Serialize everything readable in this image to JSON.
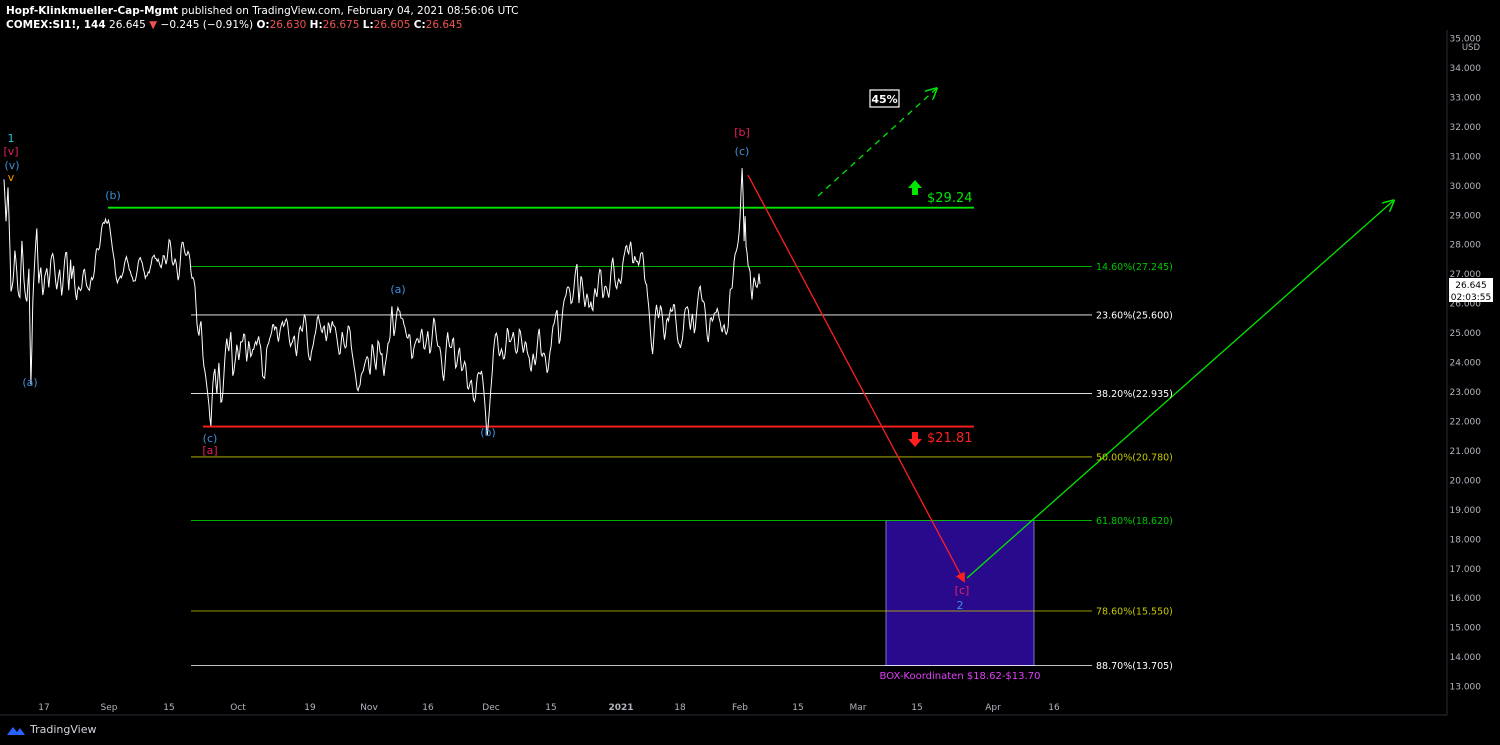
{
  "header": {
    "author": "Hopf-Klinkmueller-Cap-Mgmt",
    "published": " published on TradingView.com, February 04, 2021 08:56:06 UTC",
    "symbol": "COMEX:SI1!, 144",
    "last": "26.645",
    "change": "−0.245 (−0.91%)",
    "o_label": "O:",
    "o_val": "26.630",
    "h_label": "H:",
    "h_val": "26.675",
    "l_label": "L:",
    "l_val": "26.605",
    "c_label": "C:",
    "c_val": "26.645"
  },
  "footer": {
    "brand": "TradingView",
    "logo_icon": "tradingview-logo-icon"
  },
  "colors": {
    "background": "#000000",
    "price": "#ffffff",
    "green": "#00e600",
    "red": "#ff1f1f",
    "yellow": "#c8c800",
    "blue": "#3d8fd6",
    "pink": "#e91e63",
    "box": "#2a0a8c",
    "magenta": "#e040fb"
  },
  "chart_data": {
    "type": "line",
    "currency": "USD",
    "y_ticks": [
      "13.000",
      "14.000",
      "15.000",
      "16.000",
      "17.000",
      "18.000",
      "19.000",
      "20.000",
      "21.000",
      "22.000",
      "23.000",
      "24.000",
      "25.000",
      "26.000",
      "27.000",
      "28.000",
      "29.000",
      "30.000",
      "31.000",
      "32.000",
      "33.000",
      "34.000",
      "35.000"
    ],
    "x_ticks": [
      "17",
      "Sep",
      "15",
      "Oct",
      "19",
      "Nov",
      "16",
      "Dec",
      "15",
      "2021",
      "18",
      "Feb",
      "15",
      "Mar",
      "15",
      "Apr",
      "16"
    ],
    "ylim": [
      12.7,
      35.2
    ],
    "price_anchors": [
      [
        0,
        30.0
      ],
      [
        2,
        28.6
      ],
      [
        4,
        29.7
      ],
      [
        7,
        26.2
      ],
      [
        11,
        28.1
      ],
      [
        14,
        26.6
      ],
      [
        16,
        26.2
      ],
      [
        18,
        27.6
      ],
      [
        20,
        26.5
      ],
      [
        23,
        26.2
      ],
      [
        25,
        27.3
      ],
      [
        27,
        23.7
      ],
      [
        29,
        26.2
      ],
      [
        31,
        27.1
      ],
      [
        33,
        28.3
      ],
      [
        35,
        26.5
      ],
      [
        37,
        27.0
      ],
      [
        39,
        26.6
      ],
      [
        41,
        27.4
      ],
      [
        43,
        27.2
      ],
      [
        45,
        26.5
      ],
      [
        47,
        27.3
      ],
      [
        50,
        27.1
      ],
      [
        53,
        26.8
      ],
      [
        56,
        27.3
      ],
      [
        58,
        26.6
      ],
      [
        60,
        27.0
      ],
      [
        63,
        27.3
      ],
      [
        65,
        26.4
      ],
      [
        67,
        27.4
      ],
      [
        68,
        26.8
      ],
      [
        70,
        27.7
      ],
      [
        73,
        26.2
      ],
      [
        75,
        26.3
      ],
      [
        78,
        26.3
      ],
      [
        81,
        26.9
      ],
      [
        84,
        27.0
      ],
      [
        86,
        26.6
      ],
      [
        88,
        27.0
      ],
      [
        91,
        26.9
      ],
      [
        94,
        27.5
      ],
      [
        96,
        28.0
      ],
      [
        98,
        28.6
      ],
      [
        100,
        29.0
      ],
      [
        102,
        29.3
      ],
      [
        104,
        28.6
      ],
      [
        106,
        28.3
      ],
      [
        108,
        28.0
      ],
      [
        110,
        27.4
      ],
      [
        112,
        27.0
      ],
      [
        115,
        27.3
      ],
      [
        118,
        26.8
      ],
      [
        121,
        27.2
      ],
      [
        124,
        27.0
      ],
      [
        127,
        27.4
      ],
      [
        130,
        26.9
      ],
      [
        133,
        27.2
      ],
      [
        136,
        27.0
      ],
      [
        139,
        27.3
      ],
      [
        142,
        26.8
      ],
      [
        145,
        27.6
      ],
      [
        148,
        27.2
      ],
      [
        151,
        27.5
      ],
      [
        154,
        27.0
      ],
      [
        157,
        27.6
      ],
      [
        160,
        27.8
      ],
      [
        163,
        27.5
      ],
      [
        166,
        27.7
      ],
      [
        169,
        27.3
      ],
      [
        172,
        27.6
      ],
      [
        175,
        27.2
      ],
      [
        178,
        27.8
      ],
      [
        181,
        27.6
      ],
      [
        184,
        27.4
      ],
      [
        187,
        27.7
      ],
      [
        190,
        27.2
      ],
      [
        192,
        26.5
      ],
      [
        194,
        25.3
      ],
      [
        196,
        24.6
      ],
      [
        198,
        24.9
      ],
      [
        200,
        24.3
      ],
      [
        202,
        24.0
      ],
      [
        204,
        23.3
      ],
      [
        206,
        22.9
      ],
      [
        208,
        21.9
      ],
      [
        210,
        22.8
      ],
      [
        212,
        23.5
      ],
      [
        214,
        22.9
      ],
      [
        216,
        23.9
      ],
      [
        218,
        23.0
      ],
      [
        220,
        23.4
      ],
      [
        222,
        24.0
      ],
      [
        224,
        24.6
      ],
      [
        226,
        24.2
      ],
      [
        228,
        24.6
      ],
      [
        230,
        23.5
      ],
      [
        232,
        24.4
      ],
      [
        234,
        24.8
      ],
      [
        236,
        24.2
      ],
      [
        238,
        24.8
      ],
      [
        240,
        24.3
      ],
      [
        242,
        24.5
      ],
      [
        244,
        24.1
      ],
      [
        246,
        24.8
      ],
      [
        248,
        24.4
      ],
      [
        250,
        24.9
      ],
      [
        252,
        24.6
      ],
      [
        254,
        24.2
      ],
      [
        256,
        24.7
      ],
      [
        258,
        24.3
      ],
      [
        260,
        23.4
      ],
      [
        262,
        23.9
      ],
      [
        264,
        24.8
      ],
      [
        266,
        24.6
      ],
      [
        268,
        24.9
      ],
      [
        270,
        25.0
      ],
      [
        272,
        24.6
      ],
      [
        274,
        25.2
      ],
      [
        276,
        25.0
      ],
      [
        278,
        25.3
      ],
      [
        280,
        25.7
      ],
      [
        282,
        25.4
      ],
      [
        284,
        25.0
      ],
      [
        286,
        24.7
      ],
      [
        288,
        24.5
      ],
      [
        290,
        24.6
      ],
      [
        292,
        25.2
      ],
      [
        294,
        24.7
      ],
      [
        296,
        24.8
      ],
      [
        298,
        25.0
      ],
      [
        300,
        24.9
      ],
      [
        302,
        25.2
      ],
      [
        304,
        25.1
      ],
      [
        306,
        24.7
      ],
      [
        308,
        24.3
      ],
      [
        310,
        24.6
      ],
      [
        312,
        25.0
      ],
      [
        314,
        24.8
      ],
      [
        316,
        25.1
      ],
      [
        318,
        25.3
      ],
      [
        320,
        25.1
      ],
      [
        322,
        25.4
      ],
      [
        324,
        25.2
      ],
      [
        326,
        25.4
      ],
      [
        328,
        24.6
      ],
      [
        330,
        25.2
      ],
      [
        332,
        25.0
      ],
      [
        334,
        24.8
      ],
      [
        336,
        24.9
      ],
      [
        338,
        24.7
      ],
      [
        340,
        25.0
      ],
      [
        342,
        24.6
      ],
      [
        344,
        24.3
      ],
      [
        346,
        24.7
      ],
      [
        348,
        25.0
      ],
      [
        350,
        24.6
      ],
      [
        352,
        24.0
      ],
      [
        354,
        23.7
      ],
      [
        356,
        23.2
      ],
      [
        358,
        22.8
      ],
      [
        360,
        23.3
      ],
      [
        362,
        23.8
      ],
      [
        364,
        24.0
      ],
      [
        366,
        24.4
      ],
      [
        368,
        24.1
      ],
      [
        370,
        24.6
      ],
      [
        372,
        24.0
      ],
      [
        374,
        23.6
      ],
      [
        376,
        24.3
      ],
      [
        378,
        24.2
      ],
      [
        380,
        24.7
      ],
      [
        382,
        23.8
      ],
      [
        384,
        24.2
      ],
      [
        386,
        24.8
      ],
      [
        388,
        24.5
      ],
      [
        390,
        25.4
      ],
      [
        392,
        24.9
      ],
      [
        394,
        25.5
      ],
      [
        396,
        26.0
      ],
      [
        398,
        26.2
      ],
      [
        400,
        25.6
      ],
      [
        402,
        24.9
      ],
      [
        404,
        24.8
      ],
      [
        406,
        24.6
      ],
      [
        408,
        24.7
      ],
      [
        410,
        24.5
      ],
      [
        412,
        24.9
      ],
      [
        414,
        24.7
      ],
      [
        416,
        24.8
      ],
      [
        418,
        24.5
      ],
      [
        420,
        24.6
      ],
      [
        422,
        24.4
      ],
      [
        424,
        24.9
      ],
      [
        426,
        25.2
      ],
      [
        428,
        24.6
      ],
      [
        430,
        24.9
      ],
      [
        432,
        25.1
      ],
      [
        434,
        24.7
      ],
      [
        436,
        24.5
      ],
      [
        438,
        24.4
      ],
      [
        440,
        24.2
      ],
      [
        442,
        23.9
      ],
      [
        444,
        24.3
      ],
      [
        446,
        24.8
      ],
      [
        448,
        24.4
      ],
      [
        450,
        24.1
      ],
      [
        452,
        24.6
      ],
      [
        454,
        24.2
      ],
      [
        456,
        24.4
      ],
      [
        458,
        24.6
      ],
      [
        460,
        23.9
      ],
      [
        462,
        23.6
      ],
      [
        464,
        23.4
      ],
      [
        466,
        23.1
      ],
      [
        468,
        23.3
      ],
      [
        470,
        23.5
      ],
      [
        472,
        23.2
      ],
      [
        474,
        23.0
      ],
      [
        476,
        23.2
      ],
      [
        478,
        23.4
      ],
      [
        480,
        23.5
      ],
      [
        482,
        22.9
      ],
      [
        484,
        22.6
      ],
      [
        486,
        22.0
      ],
      [
        488,
        22.4
      ],
      [
        490,
        23.3
      ],
      [
        492,
        24.2
      ],
      [
        494,
        24.4
      ],
      [
        496,
        24.7
      ],
      [
        498,
        24.5
      ],
      [
        500,
        24.6
      ],
      [
        502,
        24.4
      ],
      [
        504,
        24.6
      ],
      [
        506,
        24.8
      ],
      [
        508,
        24.3
      ],
      [
        510,
        24.7
      ],
      [
        512,
        24.9
      ],
      [
        514,
        24.6
      ],
      [
        516,
        24.9
      ],
      [
        518,
        25.2
      ],
      [
        520,
        24.6
      ],
      [
        522,
        24.2
      ],
      [
        524,
        24.3
      ],
      [
        526,
        24.1
      ],
      [
        528,
        24.5
      ],
      [
        530,
        24.0
      ],
      [
        532,
        24.4
      ],
      [
        534,
        24.1
      ],
      [
        536,
        24.3
      ],
      [
        538,
        24.6
      ],
      [
        540,
        24.2
      ],
      [
        542,
        24.4
      ],
      [
        544,
        24.3
      ],
      [
        546,
        24.1
      ],
      [
        548,
        24.3
      ],
      [
        550,
        24.2
      ],
      [
        552,
        25.0
      ],
      [
        554,
        25.3
      ],
      [
        556,
        25.5
      ],
      [
        558,
        24.9
      ],
      [
        560,
        25.6
      ],
      [
        562,
        25.9
      ],
      [
        564,
        26.2
      ],
      [
        566,
        26.4
      ],
      [
        568,
        26.0
      ],
      [
        570,
        25.8
      ],
      [
        572,
        26.5
      ],
      [
        574,
        27.1
      ],
      [
        576,
        27.6
      ],
      [
        578,
        26.3
      ],
      [
        580,
        26.6
      ],
      [
        582,
        26.1
      ],
      [
        584,
        25.8
      ],
      [
        586,
        26.2
      ],
      [
        588,
        26.0
      ],
      [
        590,
        26.6
      ],
      [
        592,
        25.9
      ],
      [
        594,
        26.3
      ],
      [
        596,
        26.1
      ],
      [
        598,
        26.6
      ],
      [
        600,
        26.8
      ],
      [
        602,
        26.5
      ],
      [
        604,
        26.9
      ],
      [
        606,
        26.6
      ],
      [
        608,
        26.4
      ],
      [
        610,
        26.8
      ],
      [
        612,
        27.0
      ],
      [
        614,
        26.7
      ],
      [
        616,
        26.6
      ],
      [
        618,
        26.9
      ],
      [
        620,
        27.1
      ],
      [
        622,
        27.6
      ],
      [
        624,
        27.4
      ],
      [
        626,
        27.7
      ],
      [
        628,
        27.5
      ],
      [
        630,
        27.8
      ],
      [
        632,
        27.6
      ],
      [
        634,
        28.1
      ],
      [
        636,
        27.5
      ],
      [
        638,
        27.3
      ],
      [
        640,
        27.6
      ],
      [
        642,
        27.2
      ],
      [
        644,
        26.6
      ],
      [
        646,
        26.9
      ],
      [
        648,
        26.1
      ],
      [
        650,
        25.2
      ],
      [
        652,
        24.6
      ],
      [
        654,
        25.0
      ],
      [
        656,
        25.5
      ],
      [
        658,
        25.4
      ],
      [
        660,
        25.8
      ],
      [
        662,
        25.6
      ],
      [
        664,
        25.3
      ],
      [
        666,
        25.6
      ],
      [
        668,
        25.2
      ],
      [
        670,
        25.7
      ],
      [
        672,
        25.4
      ],
      [
        674,
        25.6
      ],
      [
        676,
        25.5
      ],
      [
        678,
        25.0
      ],
      [
        680,
        24.6
      ],
      [
        682,
        25.0
      ],
      [
        684,
        25.5
      ],
      [
        686,
        25.3
      ],
      [
        688,
        25.6
      ],
      [
        690,
        25.2
      ],
      [
        692,
        25.7
      ],
      [
        694,
        25.4
      ],
      [
        696,
        25.9
      ],
      [
        698,
        26.0
      ],
      [
        700,
        26.3
      ],
      [
        702,
        25.9
      ],
      [
        704,
        25.7
      ],
      [
        706,
        25.4
      ],
      [
        708,
        25.2
      ],
      [
        710,
        25.6
      ],
      [
        712,
        25.4
      ],
      [
        714,
        25.6
      ],
      [
        716,
        25.2
      ],
      [
        718,
        25.4
      ],
      [
        720,
        25.6
      ],
      [
        722,
        25.2
      ],
      [
        724,
        25.5
      ],
      [
        726,
        25.3
      ],
      [
        728,
        25.0
      ],
      [
        730,
        26.0
      ],
      [
        732,
        26.4
      ],
      [
        734,
        27.3
      ],
      [
        736,
        27.8
      ],
      [
        738,
        28.6
      ],
      [
        740,
        29.2
      ],
      [
        742,
        30.4
      ],
      [
        743,
        29.5
      ],
      [
        744,
        28.0
      ],
      [
        745,
        28.8
      ],
      [
        746,
        27.6
      ],
      [
        748,
        26.9
      ],
      [
        750,
        27.3
      ],
      [
        752,
        26.5
      ],
      [
        754,
        27.0
      ],
      [
        756,
        26.8
      ],
      [
        758,
        26.6
      ],
      [
        760,
        26.645
      ]
    ],
    "fib_levels": [
      {
        "label": "14.60%(27.245)",
        "price": 27.245,
        "color": "#00c800"
      },
      {
        "label": "23.60%(25.600)",
        "price": 25.6,
        "color": "#ffffff"
      },
      {
        "label": "38.20%(22.935)",
        "price": 22.935,
        "color": "#ffffff"
      },
      {
        "label": "50.00%(20.780)",
        "price": 20.78,
        "color": "#c8c800"
      },
      {
        "label": "61.80%(18.620)",
        "price": 18.62,
        "color": "#00c800"
      },
      {
        "label": "78.60%(15.550)",
        "price": 15.55,
        "color": "#c8c800"
      },
      {
        "label": "88.70%(13.705)",
        "price": 13.705,
        "color": "#ffffff"
      }
    ],
    "resistance": {
      "price": 29.24,
      "label": "$29.24"
    },
    "support": {
      "price": 21.81,
      "label": "$21.81"
    },
    "box": {
      "top": 18.62,
      "bottom": 13.7,
      "label": "BOX-Koordinaten $18.62-$13.70"
    },
    "target_pct_label": "45%",
    "current_price": "26.645",
    "countdown": "02:03:55",
    "wave_labels": [
      {
        "text": "1",
        "color": "#26c6da"
      },
      {
        "text": "[v]",
        "color": "#e91e63"
      },
      {
        "text": "(v)",
        "color": "#3d8fd6"
      },
      {
        "text": "v",
        "color": "#ff9800"
      },
      {
        "text": "(a)",
        "color": "#3d8fd6"
      },
      {
        "text": "(b)",
        "color": "#3d8fd6"
      },
      {
        "text": "(c)",
        "color": "#3d8fd6"
      },
      {
        "text": "[a]",
        "color": "#e91e63"
      },
      {
        "text": "(a)",
        "color": "#3d8fd6"
      },
      {
        "text": "(b)",
        "color": "#3d8fd6"
      },
      {
        "text": "[b]",
        "color": "#e91e63"
      },
      {
        "text": "(c)",
        "color": "#3d8fd6"
      },
      {
        "text": "[c]",
        "color": "#e91e63"
      },
      {
        "text": "2",
        "color": "#3d8fd6"
      }
    ]
  }
}
